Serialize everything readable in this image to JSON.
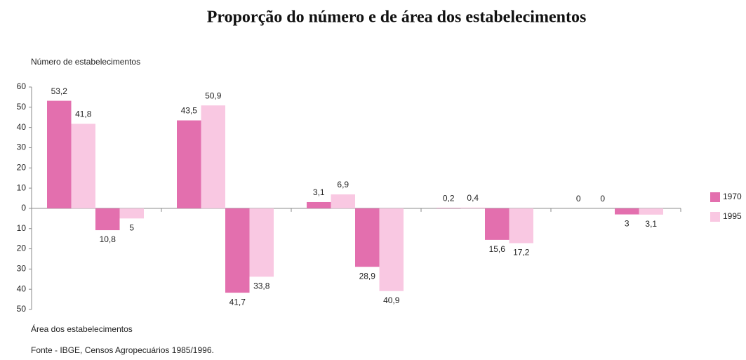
{
  "chart_data": {
    "type": "bar",
    "title": "Proporção do número e de área dos estabelecimentos",
    "y_label": "Número de estabelecimentos",
    "x_label": "Área dos estabelecimentos",
    "source": "Fonte - IBGE, Censos Agropecuários 1985/1996.",
    "categories": [
      null,
      null,
      null,
      null,
      null,
      null,
      null,
      null,
      null,
      null
    ],
    "series": [
      {
        "name": "1970",
        "color": "#e36fae",
        "values": [
          53.2,
          -10.8,
          43.5,
          -41.7,
          3.1,
          -28.9,
          0.2,
          -15.6,
          0,
          -3
        ],
        "value_labels": [
          "53,2",
          "10,8",
          "43,5",
          "41,7",
          "3,1",
          "28,9",
          "0,2",
          "15,6",
          "0",
          "3"
        ]
      },
      {
        "name": "1995",
        "color": "#f9c8e2",
        "values": [
          41.8,
          -5,
          50.9,
          -33.8,
          6.9,
          -40.9,
          0.4,
          -17.2,
          0,
          -3.1
        ],
        "value_labels": [
          "41,8",
          "5",
          "50,9",
          "33,8",
          "6,9",
          "40,9",
          "0,4",
          "17,2",
          "0",
          "3,1"
        ]
      }
    ],
    "ylim": [
      -50,
      60
    ],
    "yticks": [
      60,
      50,
      40,
      30,
      20,
      10,
      0,
      {
        "value": -10,
        "label": "10"
      },
      {
        "value": -20,
        "label": "20"
      },
      {
        "value": -30,
        "label": "30"
      },
      {
        "value": -40,
        "label": "40"
      },
      {
        "value": -50,
        "label": "50"
      }
    ],
    "legend": "right"
  }
}
